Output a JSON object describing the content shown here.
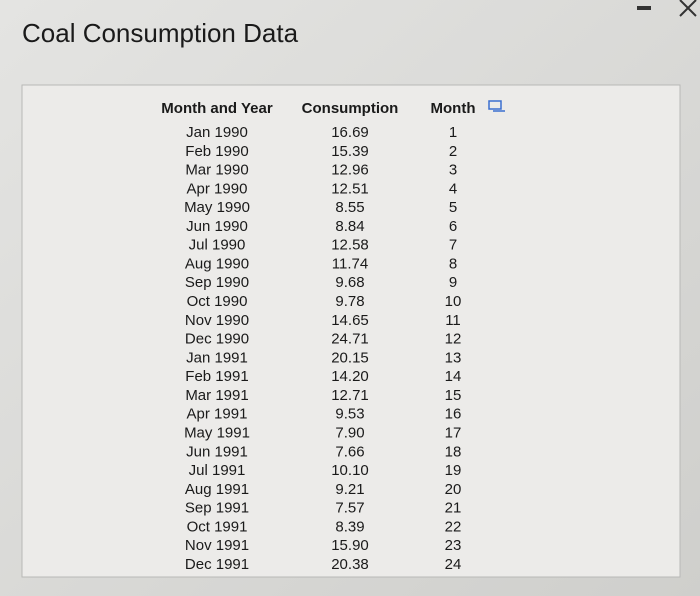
{
  "header": {
    "title": "Coal Consumption Data"
  },
  "table": {
    "columns": [
      "Month and Year",
      "Consumption",
      "Month"
    ],
    "rows": [
      [
        "Jan 1990",
        "16.69",
        1
      ],
      [
        "Feb 1990",
        "15.39",
        2
      ],
      [
        "Mar 1990",
        "12.96",
        3
      ],
      [
        "Apr 1990",
        "12.51",
        4
      ],
      [
        "May 1990",
        "8.55",
        5
      ],
      [
        "Jun 1990",
        "8.84",
        6
      ],
      [
        "Jul 1990",
        "12.58",
        7
      ],
      [
        "Aug 1990",
        "11.74",
        8
      ],
      [
        "Sep 1990",
        "9.68",
        9
      ],
      [
        "Oct 1990",
        "9.78",
        10
      ],
      [
        "Nov 1990",
        "14.65",
        11
      ],
      [
        "Dec 1990",
        "24.71",
        12
      ],
      [
        "Jan 1991",
        "20.15",
        13
      ],
      [
        "Feb 1991",
        "14.20",
        14
      ],
      [
        "Mar 1991",
        "12.71",
        15
      ],
      [
        "Apr 1991",
        "9.53",
        16
      ],
      [
        "May 1991",
        "7.90",
        17
      ],
      [
        "Jun 1991",
        "7.66",
        18
      ],
      [
        "Jul 1991",
        "10.10",
        19
      ],
      [
        "Aug 1991",
        "9.21",
        20
      ],
      [
        "Sep 1991",
        "7.57",
        21
      ],
      [
        "Oct 1991",
        "8.39",
        22
      ],
      [
        "Nov 1991",
        "15.90",
        23
      ],
      [
        "Dec 1991",
        "20.38",
        24
      ]
    ]
  }
}
